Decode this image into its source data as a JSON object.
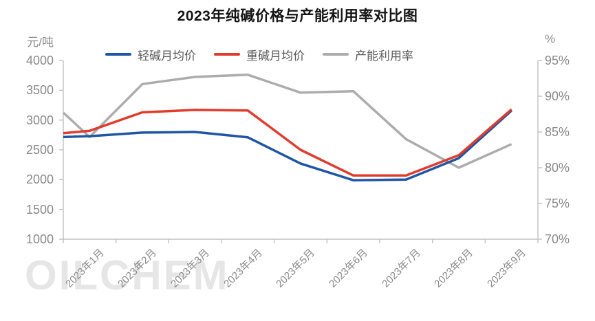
{
  "title": "2023年纯碱价格与产能利用率对比图",
  "watermark": "OILCHEM",
  "left_axis": {
    "unit": "元/吨",
    "tick_labels": [
      "4000",
      "3500",
      "3000",
      "2500",
      "2000",
      "1500",
      "1000"
    ]
  },
  "right_axis": {
    "unit": "%",
    "tick_labels": [
      "95%",
      "90%",
      "85%",
      "80%",
      "75%",
      "70%"
    ]
  },
  "legend": {
    "items": [
      {
        "label": "轻碱月均价",
        "color": "#1e55a5"
      },
      {
        "label": "重碱月均价",
        "color": "#e03c2d"
      },
      {
        "label": "产能利用率",
        "color": "#acacac"
      }
    ]
  },
  "chart_data": {
    "type": "line",
    "title": "2023年纯碱价格与产能利用率对比图",
    "categories": [
      "2023年1月",
      "2023年2月",
      "2023年3月",
      "2023年4月",
      "2023年5月",
      "2023年6月",
      "2023年7月",
      "2023年8月",
      "2023年9月"
    ],
    "left_ylim": [
      1000,
      4000
    ],
    "right_ylim": [
      70,
      95
    ],
    "left_axis_label": "元/吨",
    "right_axis_label": "%",
    "grid": false,
    "legend_position": "top",
    "series": [
      {
        "name": "轻碱月均价",
        "axis": "left",
        "color": "#1e55a5",
        "unit": "元/吨",
        "values": [
          2730,
          2790,
          2800,
          2710,
          2270,
          1990,
          2000,
          2360,
          3160
        ],
        "start_edge_value": 2715
      },
      {
        "name": "重碱月均价",
        "axis": "left",
        "color": "#e03c2d",
        "unit": "元/吨",
        "values": [
          2820,
          3130,
          3170,
          3160,
          2500,
          2070,
          2070,
          2410,
          3180
        ],
        "start_edge_value": 2780
      },
      {
        "name": "产能利用率",
        "axis": "right",
        "color": "#acacac",
        "unit": "%",
        "values": [
          84.3,
          91.7,
          92.7,
          93.0,
          90.5,
          90.7,
          84.0,
          80.0,
          83.3
        ],
        "start_edge_value": 87.7
      }
    ]
  }
}
